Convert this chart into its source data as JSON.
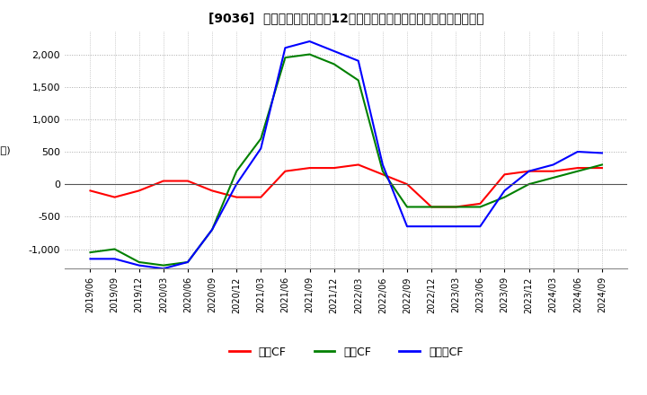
{
  "title": "[9036]  キャッシュフローの12か月移動合計の対前年同期増減額の推移",
  "ylim": [
    -1300,
    2350
  ],
  "yticks": [
    -1000,
    -500,
    0,
    500,
    1000,
    1500,
    2000
  ],
  "dates": [
    "2019/06",
    "2019/09",
    "2019/12",
    "2020/03",
    "2020/06",
    "2020/09",
    "2020/12",
    "2021/03",
    "2021/06",
    "2021/09",
    "2021/12",
    "2022/03",
    "2022/06",
    "2022/09",
    "2022/12",
    "2023/03",
    "2023/06",
    "2023/09",
    "2023/12",
    "2024/03",
    "2024/06",
    "2024/09"
  ],
  "eigyo_cf": [
    -100,
    -200,
    -100,
    50,
    50,
    -100,
    -200,
    -200,
    200,
    250,
    250,
    300,
    150,
    0,
    -350,
    -350,
    -300,
    150,
    200,
    200,
    250,
    250
  ],
  "toshi_cf": [
    -1050,
    -1000,
    -1200,
    -1250,
    -1200,
    -700,
    200,
    700,
    1950,
    2000,
    1850,
    1600,
    200,
    -350,
    -350,
    -350,
    -350,
    -200,
    0,
    100,
    200,
    300
  ],
  "free_cf": [
    -1150,
    -1150,
    -1250,
    -1300,
    -1200,
    -700,
    0,
    550,
    2100,
    2200,
    2050,
    1900,
    300,
    -650,
    -650,
    -650,
    -650,
    -100,
    200,
    300,
    500,
    480
  ],
  "eigyo_color": "#ff0000",
  "toshi_color": "#008000",
  "free_color": "#0000ff",
  "bg_color": "#ffffff",
  "grid_color": "#aaaaaa",
  "legend_labels": [
    "営業CF",
    "投資CF",
    "フリーCF"
  ]
}
